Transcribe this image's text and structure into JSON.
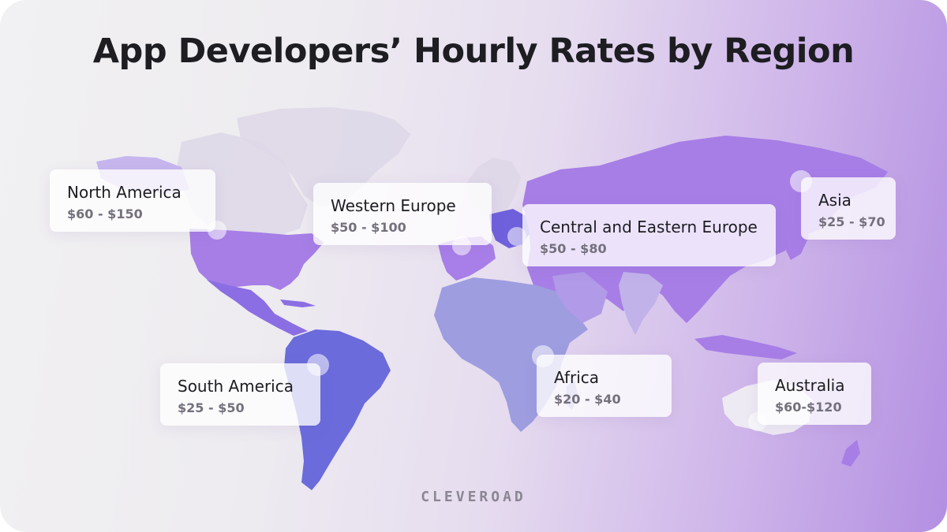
{
  "title": "App Developers’ Hourly Rates by Region",
  "brand": "CLEVEROAD",
  "colors": {
    "map_light": "#d7d0e6",
    "north_america": "#a67ee6",
    "central_america": "#8b6ee4",
    "south_america": "#6b6bdc",
    "africa": "#9e9de0",
    "western_europe": "#a87ee8",
    "eastern_europe": "#6f60dc",
    "asia": "#a77ee6",
    "australia": "#eeeaf3"
  },
  "regions": [
    {
      "id": "north-america",
      "name": "North America",
      "rate": "$60 - $150"
    },
    {
      "id": "western-europe",
      "name": "Western Europe",
      "rate": "$50 - $100"
    },
    {
      "id": "central-eastern-europe",
      "name": "Central and Eastern Europe",
      "rate": "$50 - $80"
    },
    {
      "id": "asia",
      "name": "Asia",
      "rate": "$25 - $70"
    },
    {
      "id": "south-america",
      "name": "South America",
      "rate": "$25 - $50"
    },
    {
      "id": "africa",
      "name": "Africa",
      "rate": "$20 - $40"
    },
    {
      "id": "australia",
      "name": "Australia",
      "rate": "$60-$120"
    }
  ]
}
